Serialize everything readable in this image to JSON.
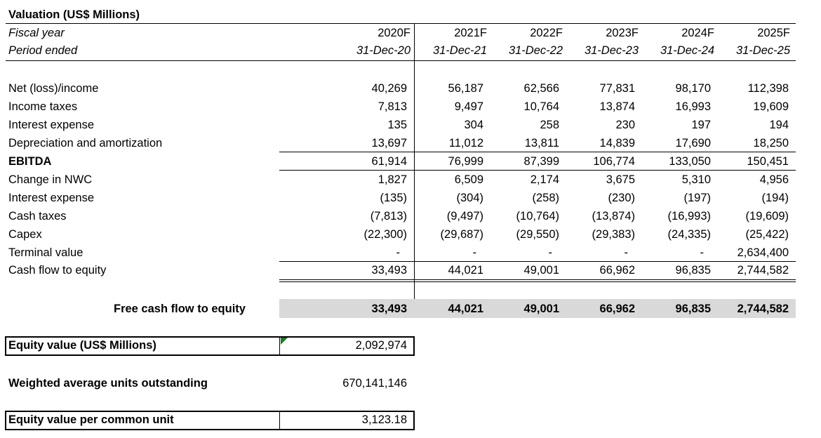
{
  "title": "Valuation (US$ Millions)",
  "header": {
    "fiscal_year_label": "Fiscal year",
    "period_label": "Period ended",
    "years": [
      "2020F",
      "2021F",
      "2022F",
      "2023F",
      "2024F",
      "2025F"
    ],
    "periods": [
      "31-Dec-20",
      "31-Dec-21",
      "31-Dec-22",
      "31-Dec-23",
      "31-Dec-24",
      "31-Dec-25"
    ]
  },
  "rows": [
    {
      "label": "Net (loss)/income",
      "values": [
        "40,269",
        "56,187",
        "62,566",
        "77,831",
        "98,170",
        "112,398"
      ]
    },
    {
      "label": "Income taxes",
      "values": [
        "7,813",
        "9,497",
        "10,764",
        "13,874",
        "16,993",
        "19,609"
      ]
    },
    {
      "label": "Interest expense",
      "values": [
        "135",
        "304",
        "258",
        "230",
        "197",
        "194"
      ]
    },
    {
      "label": "Depreciation and amortization",
      "values": [
        "13,697",
        "11,012",
        "13,811",
        "14,839",
        "17,690",
        "18,250"
      ]
    },
    {
      "label": "EBITDA",
      "values": [
        "61,914",
        "76,999",
        "87,399",
        "106,774",
        "133,050",
        "150,451"
      ]
    },
    {
      "label": "Change in NWC",
      "values": [
        "1,827",
        "6,509",
        "2,174",
        "3,675",
        "5,310",
        "4,956"
      ]
    },
    {
      "label": "Interest expense",
      "values": [
        "(135)",
        "(304)",
        "(258)",
        "(230)",
        "(197)",
        "(194)"
      ]
    },
    {
      "label": "Cash taxes",
      "values": [
        "(7,813)",
        "(9,497)",
        "(10,764)",
        "(13,874)",
        "(16,993)",
        "(19,609)"
      ]
    },
    {
      "label": "Capex",
      "values": [
        "(22,300)",
        "(29,687)",
        "(29,550)",
        "(29,383)",
        "(24,335)",
        "(25,422)"
      ]
    },
    {
      "label": "Terminal value",
      "values": [
        "-",
        "-",
        "-",
        "-",
        "-",
        "2,634,400"
      ]
    },
    {
      "label": "Cash flow to equity",
      "values": [
        "33,493",
        "44,021",
        "49,001",
        "66,962",
        "96,835",
        "2,744,582"
      ]
    }
  ],
  "fcfe": {
    "label": "Free cash flow to equity",
    "values": [
      "33,493",
      "44,021",
      "49,001",
      "66,962",
      "96,835",
      "2,744,582"
    ]
  },
  "summary": {
    "equity_value_label": "Equity value (US$ Millions)",
    "equity_value": "2,092,974",
    "units_label": "Weighted average units outstanding",
    "units": "670,141,146",
    "per_unit_label": "Equity value per common unit",
    "per_unit": "3,123.18"
  },
  "colors": {
    "band": "#d9d9d9",
    "comment_marker": "#1f7a2a"
  }
}
